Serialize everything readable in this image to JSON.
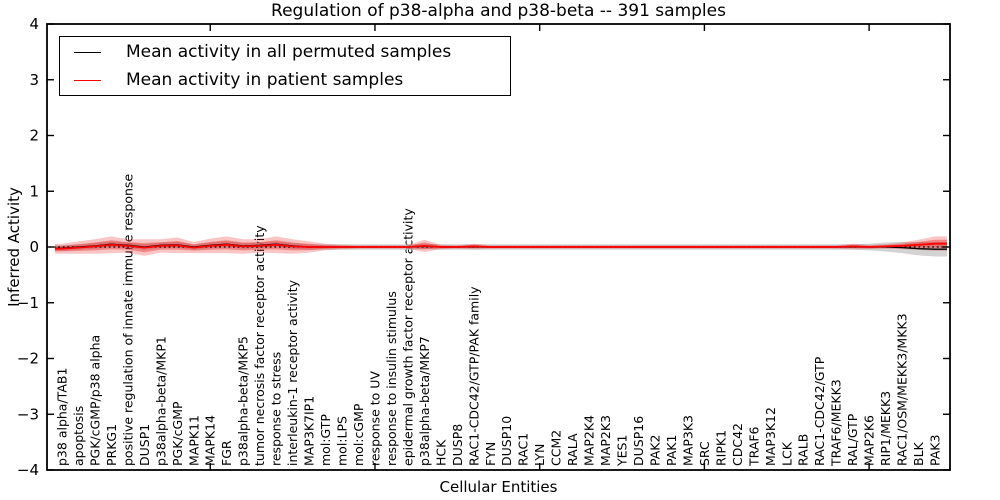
{
  "chart_data": {
    "type": "line",
    "title": "Regulation of p38-alpha and p38-beta -- 391 samples",
    "xlabel": "Cellular Entities",
    "ylabel": "Inferred Activity",
    "ylim": [
      -4,
      4
    ],
    "yticks": [
      4,
      3,
      2,
      1,
      0,
      -1,
      -2,
      -3,
      -4
    ],
    "ytick_labels": [
      "4",
      "3",
      "2",
      "1",
      "0",
      "−1",
      "−2",
      "−3",
      "−4"
    ],
    "x_major_tick_indices": [
      9,
      19,
      29,
      39,
      49
    ],
    "grid": false,
    "categories": [
      "p38 alpha/TAB1",
      "apoptosis",
      "PGK/cGMP/p38 alpha",
      "PRKG1",
      "positive regulation of innate immune response",
      "DUSP1",
      "p38alpha-beta/MKP1",
      "PGK/cGMP",
      "MAPK11",
      "MAPK14",
      "FGR",
      "p38alpha-beta/MKP5",
      "tumor necrosis factor receptor activity",
      "response to stress",
      "interleukin-1 receptor activity",
      "MAP3K7IP1",
      "mol:GTP",
      "mol:LPS",
      "mol:cGMP",
      "response to UV",
      "response to insulin stimulus",
      "epidermal growth factor receptor activity",
      "p38alpha-beta/MKP7",
      "HCK",
      "DUSP8",
      "RAC1-CDC42/GTP/PAK family",
      "FYN",
      "DUSP10",
      "RAC1",
      "LYN",
      "CCM2",
      "RALA",
      "MAP2K4",
      "MAP2K3",
      "YES1",
      "DUSP16",
      "PAK2",
      "PAK1",
      "MAP3K3",
      "SRC",
      "RIPK1",
      "CDC42",
      "TRAF6",
      "MAP3K12",
      "LCK",
      "RALB",
      "RAC1-CDC42/GTP",
      "TRAF6/MEKK3",
      "RAL/GTP",
      "MAP2K6",
      "RIP1/MEKK3",
      "RAC1/OSM/MEKK3/MKK3",
      "BLK",
      "PAK3"
    ],
    "series": [
      {
        "name": "Mean activity in all permuted samples",
        "color": "#000000",
        "band_color": "#c8c8c8",
        "values": [
          -0.02,
          0.0,
          0.02,
          0.05,
          0.03,
          0.0,
          0.03,
          0.04,
          0.0,
          0.03,
          0.05,
          0.02,
          0.03,
          0.05,
          0.02,
          0.0,
          0.0,
          0.0,
          0.0,
          0.0,
          0.0,
          0.0,
          0.01,
          0.0,
          0.0,
          0.0,
          0.0,
          0.0,
          0.0,
          0.0,
          0.0,
          0.0,
          0.0,
          0.0,
          0.0,
          0.0,
          0.0,
          0.0,
          0.0,
          0.0,
          0.0,
          0.0,
          0.0,
          0.0,
          0.0,
          0.0,
          0.0,
          0.0,
          0.0,
          0.0,
          0.0,
          -0.01,
          -0.03,
          -0.04
        ],
        "band_halfwidth": [
          0.05,
          0.05,
          0.05,
          0.05,
          0.05,
          0.05,
          0.05,
          0.05,
          0.05,
          0.05,
          0.05,
          0.05,
          0.05,
          0.05,
          0.05,
          0.05,
          0.05,
          0.05,
          0.05,
          0.05,
          0.05,
          0.05,
          0.05,
          0.05,
          0.05,
          0.05,
          0.05,
          0.05,
          0.05,
          0.05,
          0.05,
          0.05,
          0.05,
          0.05,
          0.05,
          0.05,
          0.05,
          0.05,
          0.05,
          0.05,
          0.05,
          0.05,
          0.05,
          0.05,
          0.05,
          0.05,
          0.05,
          0.05,
          0.05,
          0.06,
          0.08,
          0.1,
          0.12,
          0.13
        ]
      },
      {
        "name": "Mean activity in patient samples",
        "color": "#ff0000",
        "band_color": "#e82020",
        "values": [
          -0.03,
          -0.01,
          0.01,
          0.04,
          0.02,
          -0.01,
          0.02,
          0.03,
          -0.01,
          0.02,
          0.04,
          0.01,
          0.02,
          0.04,
          0.01,
          0.0,
          0.0,
          0.0,
          0.0,
          0.0,
          0.0,
          0.0,
          0.02,
          0.0,
          0.0,
          0.01,
          0.0,
          0.0,
          0.0,
          0.0,
          0.0,
          0.0,
          0.0,
          0.0,
          0.0,
          0.0,
          0.0,
          0.0,
          0.0,
          0.0,
          0.0,
          0.0,
          0.0,
          0.0,
          0.0,
          0.0,
          0.0,
          0.0,
          0.01,
          0.0,
          0.01,
          0.02,
          0.04,
          0.06
        ],
        "band_halfwidth": [
          0.09,
          0.11,
          0.13,
          0.15,
          0.12,
          0.15,
          0.12,
          0.14,
          0.1,
          0.13,
          0.15,
          0.13,
          0.12,
          0.15,
          0.13,
          0.1,
          0.06,
          0.04,
          0.03,
          0.03,
          0.03,
          0.03,
          0.11,
          0.04,
          0.03,
          0.05,
          0.03,
          0.03,
          0.03,
          0.03,
          0.03,
          0.03,
          0.03,
          0.03,
          0.03,
          0.03,
          0.03,
          0.03,
          0.03,
          0.03,
          0.03,
          0.03,
          0.03,
          0.03,
          0.03,
          0.03,
          0.03,
          0.03,
          0.05,
          0.04,
          0.04,
          0.06,
          0.09,
          0.13
        ]
      }
    ],
    "zero_line": {
      "style": "dotted",
      "color": "#000000",
      "y": 0
    },
    "legend": {
      "position": "upper left",
      "entries": [
        {
          "label": "Mean activity in all permuted samples",
          "color": "#000000"
        },
        {
          "label": "Mean activity in patient samples",
          "color": "#ff0000"
        }
      ]
    }
  }
}
